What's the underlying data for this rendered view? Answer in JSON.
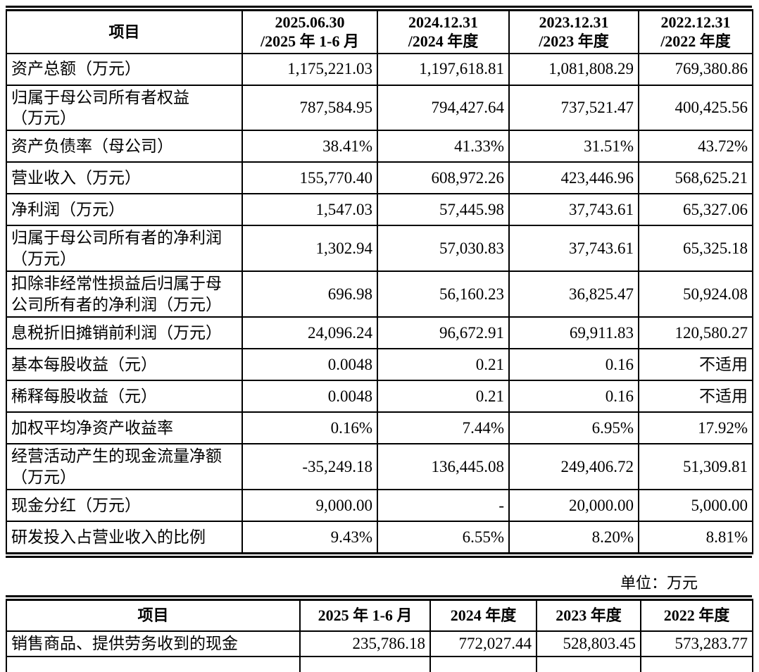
{
  "unit_note": "单位：万元",
  "summary_table": {
    "item_header": "项目",
    "period_headers": [
      "2025.06.30\n/2025 年 1-6 月",
      "2024.12.31\n/2024 年度",
      "2023.12.31\n/2023 年度",
      "2022.12.31\n/2022 年度"
    ],
    "rows": [
      {
        "label": "资产总额（万元）",
        "tall": false,
        "values": [
          "1,175,221.03",
          "1,197,618.81",
          "1,081,808.29",
          "769,380.86"
        ]
      },
      {
        "label": "归属于母公司所有者权益\n（万元）",
        "tall": true,
        "values": [
          "787,584.95",
          "794,427.64",
          "737,521.47",
          "400,425.56"
        ]
      },
      {
        "label": "资产负债率（母公司）",
        "tall": false,
        "values": [
          "38.41%",
          "41.33%",
          "31.51%",
          "43.72%"
        ]
      },
      {
        "label": "营业收入（万元）",
        "tall": false,
        "values": [
          "155,770.40",
          "608,972.26",
          "423,446.96",
          "568,625.21"
        ]
      },
      {
        "label": "净利润（万元）",
        "tall": false,
        "values": [
          "1,547.03",
          "57,445.98",
          "37,743.61",
          "65,327.06"
        ]
      },
      {
        "label": "归属于母公司所有者的净利润\n（万元）",
        "tall": true,
        "values": [
          "1,302.94",
          "57,030.83",
          "37,743.61",
          "65,325.18"
        ]
      },
      {
        "label": "扣除非经常性损益后归属于母\n公司所有者的净利润（万元）",
        "tall": true,
        "values": [
          "696.98",
          "56,160.23",
          "36,825.47",
          "50,924.08"
        ]
      },
      {
        "label": "息税折旧摊销前利润（万元）",
        "tall": false,
        "values": [
          "24,096.24",
          "96,672.91",
          "69,911.83",
          "120,580.27"
        ]
      },
      {
        "label": "基本每股收益（元）",
        "tall": false,
        "values": [
          "0.0048",
          "0.21",
          "0.16",
          "不适用"
        ]
      },
      {
        "label": "稀释每股收益（元）",
        "tall": false,
        "values": [
          "0.0048",
          "0.21",
          "0.16",
          "不适用"
        ]
      },
      {
        "label": "加权平均净资产收益率",
        "tall": false,
        "values": [
          "0.16%",
          "7.44%",
          "6.95%",
          "17.92%"
        ]
      },
      {
        "label": "经营活动产生的现金流量净额\n（万元）",
        "tall": true,
        "values": [
          "-35,249.18",
          "136,445.08",
          "249,406.72",
          "51,309.81"
        ]
      },
      {
        "label": "现金分红（万元）",
        "tall": false,
        "values": [
          "9,000.00",
          "-",
          "20,000.00",
          "5,000.00"
        ]
      },
      {
        "label": "研发投入占营业收入的比例",
        "tall": false,
        "values": [
          "9.43%",
          "6.55%",
          "8.20%",
          "8.81%"
        ]
      }
    ]
  },
  "cash_table": {
    "item_header": "项目",
    "period_headers": [
      "2025 年 1-6 月",
      "2024 年度",
      "2023 年度",
      "2022 年度"
    ],
    "rows": [
      {
        "label": "销售商品、提供劳务收到的现金",
        "tall": false,
        "values": [
          "235,786.18",
          "772,027.44",
          "528,803.45",
          "573,283.77"
        ]
      }
    ],
    "has_partial_next_row": true
  }
}
